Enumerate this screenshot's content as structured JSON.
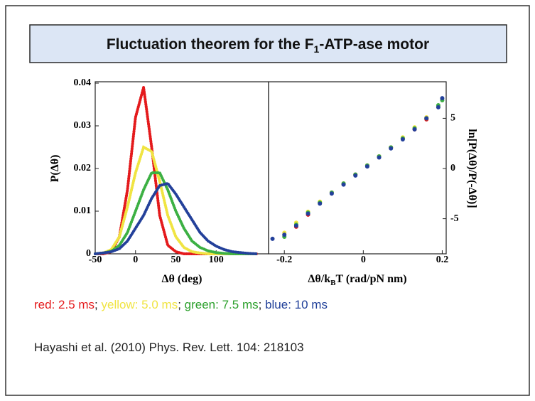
{
  "slide": {
    "title": [
      "Fluctuation theorem for the F",
      "1",
      "-ATP-ase motor"
    ],
    "caption": [
      {
        "text": "red: 2.5 ms",
        "color": "#e41a1c"
      },
      {
        "text": "; ",
        "color": "#222222"
      },
      {
        "text": "yellow: 5.0 ms",
        "color": "#f0e442"
      },
      {
        "text": "; ",
        "color": "#222222"
      },
      {
        "text": "green: 7.5 ms",
        "color": "#2ca02c"
      },
      {
        "text": "; ",
        "color": "#222222"
      },
      {
        "text": "blue: 10 ms",
        "color": "#1f3f99"
      }
    ],
    "citation": "Hayashi et al. (2010) Phys. Rev. Lett. 104: 218103"
  },
  "chart_data": [
    {
      "type": "line",
      "xlabel": [
        "Δθ (deg)"
      ],
      "ylabel": "P(Δθ)",
      "x": [
        -50,
        -40,
        -30,
        -20,
        -10,
        0,
        10,
        20,
        30,
        40,
        50,
        60,
        70,
        80,
        90,
        100,
        110,
        120,
        130,
        140,
        150
      ],
      "xlim": [
        -50,
        165
      ],
      "xticks": [
        -50,
        0,
        50,
        100
      ],
      "ylim": [
        0,
        0.04
      ],
      "yticks": [
        0,
        0.01,
        0.02,
        0.03,
        0.04
      ],
      "yaxis_side": "left",
      "series": [
        {
          "name": "red",
          "color": "#e41a1c",
          "values": [
            0,
            0,
            0.0005,
            0.004,
            0.015,
            0.032,
            0.039,
            0.025,
            0.009,
            0.002,
            0.0005,
            0,
            0,
            0,
            0,
            0,
            0,
            0,
            0,
            0,
            0
          ]
        },
        {
          "name": "yellow",
          "color": "#f0e442",
          "values": [
            0,
            0.0002,
            0.001,
            0.004,
            0.011,
            0.019,
            0.025,
            0.024,
            0.017,
            0.009,
            0.004,
            0.0015,
            0.0005,
            0.0002,
            0,
            0,
            0,
            0,
            0,
            0,
            0
          ]
        },
        {
          "name": "green",
          "color": "#3cb043",
          "values": [
            0,
            0.0002,
            0.0006,
            0.002,
            0.005,
            0.01,
            0.015,
            0.019,
            0.019,
            0.015,
            0.01,
            0.006,
            0.003,
            0.0015,
            0.0007,
            0.0003,
            0.0001,
            0,
            0,
            0,
            0
          ]
        },
        {
          "name": "blue",
          "color": "#23409a",
          "values": [
            0,
            0.0002,
            0.0005,
            0.0012,
            0.003,
            0.006,
            0.009,
            0.013,
            0.016,
            0.0165,
            0.014,
            0.011,
            0.008,
            0.005,
            0.003,
            0.0018,
            0.001,
            0.0005,
            0.0003,
            0.0001,
            0
          ]
        }
      ]
    },
    {
      "type": "scatter",
      "xlabel": [
        "Δθ/k",
        "B",
        "T (rad/pN nm)"
      ],
      "ylabel": "ln[P(Δθ)/P(-Δθ)]",
      "x": [
        -0.23,
        -0.2,
        -0.17,
        -0.14,
        -0.11,
        -0.08,
        -0.05,
        -0.02,
        0.01,
        0.04,
        0.07,
        0.1,
        0.13,
        0.16,
        0.19,
        0.2
      ],
      "xlim": [
        -0.24,
        0.21
      ],
      "xticks": [
        -0.2,
        0,
        0.2
      ],
      "ylim": [
        -8.5,
        8.5
      ],
      "yticks": [
        -5,
        0,
        5
      ],
      "yaxis_side": "right",
      "series": [
        {
          "name": "red",
          "color": "#e41a1c",
          "values": [
            null,
            null,
            -5.8,
            -4.6,
            -3.4,
            -2.4,
            -1.5,
            -0.6,
            0.3,
            1.2,
            2.1,
            3.0,
            3.9,
            4.9,
            null,
            null
          ]
        },
        {
          "name": "yellow",
          "color": "#f0e442",
          "values": [
            null,
            -6.4,
            -5.4,
            -4.3,
            -3.3,
            -2.4,
            -1.5,
            -0.6,
            0.3,
            1.2,
            2.1,
            3.1,
            4.1,
            5.1,
            6.2,
            null
          ]
        },
        {
          "name": "green",
          "color": "#3cb043",
          "values": [
            null,
            -6.8,
            -5.6,
            -4.4,
            -3.4,
            -2.4,
            -1.5,
            -0.6,
            0.3,
            1.2,
            2.1,
            3.0,
            4.0,
            5.0,
            6.3,
            6.8
          ]
        },
        {
          "name": "blue",
          "color": "#23409a",
          "values": [
            -7.0,
            -6.6,
            -5.7,
            -4.5,
            -3.5,
            -2.5,
            -1.6,
            -0.7,
            0.2,
            1.1,
            2.0,
            2.9,
            3.9,
            5.0,
            6.1,
            7.0
          ]
        }
      ]
    }
  ]
}
